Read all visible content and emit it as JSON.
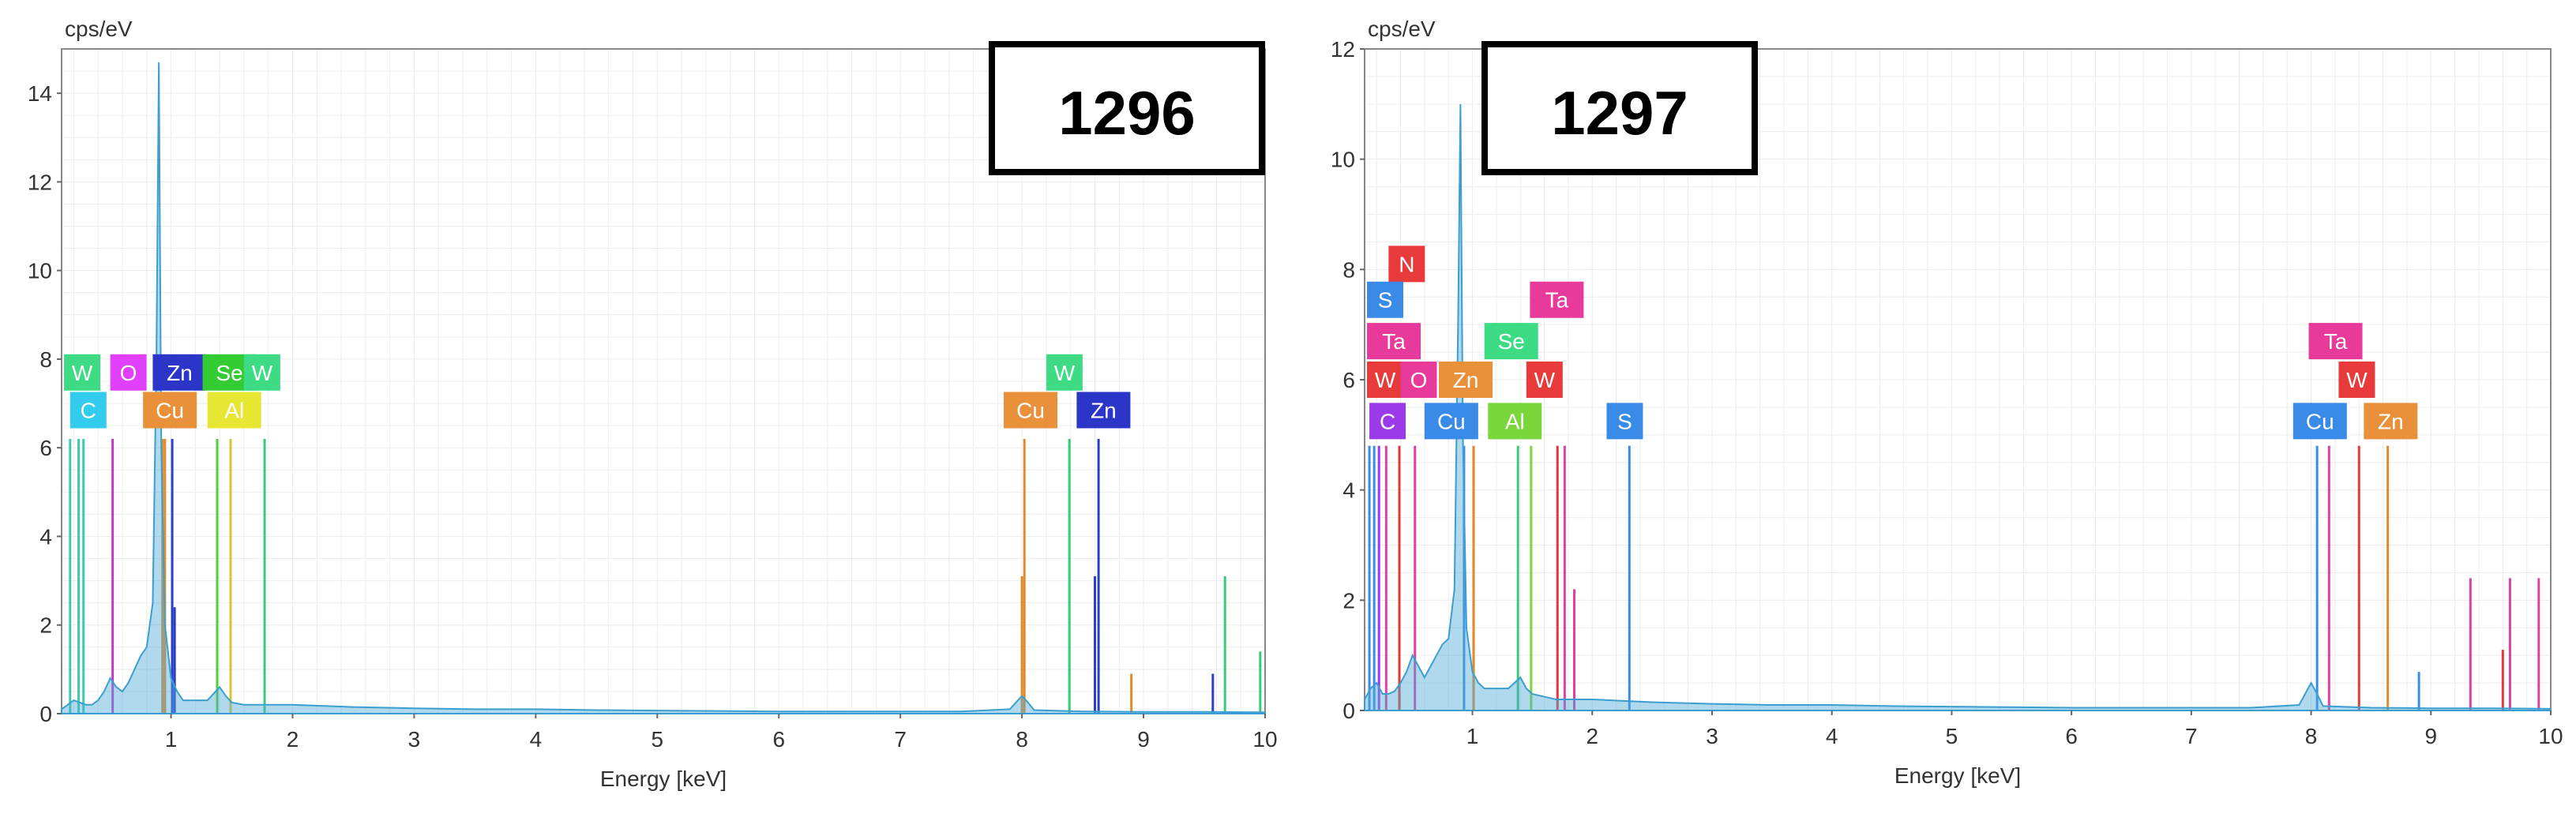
{
  "chart_data": [
    {
      "type": "line",
      "title": "1296",
      "unit_label": "cps/eV",
      "xlabel": "Energy [keV]",
      "xlim": [
        0.1,
        10
      ],
      "ylim": [
        0,
        15
      ],
      "x_ticks": [
        1,
        2,
        3,
        4,
        5,
        6,
        7,
        8,
        9,
        10
      ],
      "y_ticks": [
        0,
        2,
        4,
        6,
        8,
        10,
        12,
        14
      ],
      "grid": true,
      "spectrum": {
        "x": [
          0.1,
          0.15,
          0.2,
          0.25,
          0.3,
          0.35,
          0.4,
          0.45,
          0.5,
          0.55,
          0.6,
          0.65,
          0.7,
          0.75,
          0.8,
          0.85,
          0.88,
          0.9,
          0.92,
          0.95,
          1.0,
          1.05,
          1.1,
          1.2,
          1.3,
          1.4,
          1.45,
          1.5,
          1.6,
          1.7,
          1.8,
          2.0,
          2.5,
          3.0,
          3.5,
          4.0,
          4.5,
          5.0,
          5.5,
          6.0,
          6.5,
          7.0,
          7.5,
          7.9,
          8.0,
          8.05,
          8.1,
          8.5,
          9.0,
          9.5,
          10.0
        ],
        "y": [
          0.1,
          0.2,
          0.3,
          0.25,
          0.2,
          0.2,
          0.3,
          0.5,
          0.8,
          0.6,
          0.5,
          0.7,
          1.0,
          1.3,
          1.5,
          2.5,
          8.0,
          14.7,
          6.0,
          2.0,
          0.8,
          0.5,
          0.3,
          0.3,
          0.3,
          0.6,
          0.4,
          0.25,
          0.2,
          0.2,
          0.2,
          0.2,
          0.15,
          0.12,
          0.1,
          0.1,
          0.08,
          0.07,
          0.06,
          0.05,
          0.05,
          0.05,
          0.05,
          0.1,
          0.4,
          0.25,
          0.08,
          0.05,
          0.04,
          0.04,
          0.03
        ]
      },
      "lines": [
        {
          "x": 0.17,
          "y": 6.2,
          "color": "#3fc9b0"
        },
        {
          "x": 0.24,
          "y": 6.2,
          "color": "#3fc9b0"
        },
        {
          "x": 0.28,
          "y": 6.2,
          "color": "#3fc9b0"
        },
        {
          "x": 0.52,
          "y": 6.2,
          "color": "#c834c8"
        },
        {
          "x": 0.93,
          "y": 6.2,
          "color": "#e08a2a"
        },
        {
          "x": 0.95,
          "y": 6.2,
          "color": "#e08a2a"
        },
        {
          "x": 1.01,
          "y": 6.2,
          "color": "#2a3fc8"
        },
        {
          "x": 1.03,
          "y": 2.4,
          "color": "#2a3fc8"
        },
        {
          "x": 1.38,
          "y": 6.2,
          "color": "#4ecf3a"
        },
        {
          "x": 1.49,
          "y": 6.2,
          "color": "#d6c43a"
        },
        {
          "x": 1.77,
          "y": 6.2,
          "color": "#3ac97a"
        },
        {
          "x": 8.02,
          "y": 6.2,
          "color": "#e08a2a"
        },
        {
          "x": 8.0,
          "y": 3.1,
          "color": "#e08a2a"
        },
        {
          "x": 8.39,
          "y": 6.2,
          "color": "#3ac97a"
        },
        {
          "x": 8.63,
          "y": 6.2,
          "color": "#2a3fc8"
        },
        {
          "x": 8.6,
          "y": 3.1,
          "color": "#2a3fc8"
        },
        {
          "x": 8.9,
          "y": 0.9,
          "color": "#e08a2a"
        },
        {
          "x": 9.57,
          "y": 0.9,
          "color": "#2a3fc8"
        },
        {
          "x": 9.67,
          "y": 3.1,
          "color": "#3ac97a"
        },
        {
          "x": 9.96,
          "y": 1.4,
          "color": "#3ac97a"
        }
      ],
      "labels": [
        {
          "text": "W",
          "x": 0.12,
          "y": 7.7,
          "color": "#3ddc84"
        },
        {
          "text": "O",
          "x": 0.5,
          "y": 7.7,
          "color": "#e040fb"
        },
        {
          "text": "Zn",
          "x": 0.85,
          "y": 7.7,
          "color": "#2b35c8"
        },
        {
          "text": "Se",
          "x": 1.26,
          "y": 7.7,
          "color": "#33cc33"
        },
        {
          "text": "W",
          "x": 1.6,
          "y": 7.7,
          "color": "#3ddc84"
        },
        {
          "text": "C",
          "x": 0.17,
          "y": 6.85,
          "color": "#33ccee"
        },
        {
          "text": "Cu",
          "x": 0.77,
          "y": 6.85,
          "color": "#e8903a"
        },
        {
          "text": "Al",
          "x": 1.3,
          "y": 6.85,
          "color": "#e6e633"
        },
        {
          "text": "W",
          "x": 8.2,
          "y": 7.7,
          "color": "#3ddc84"
        },
        {
          "text": "Cu",
          "x": 7.85,
          "y": 6.85,
          "color": "#e8903a"
        },
        {
          "text": "Zn",
          "x": 8.45,
          "y": 6.85,
          "color": "#2b35c8"
        }
      ]
    },
    {
      "type": "line",
      "title": "1297",
      "unit_label": "cps/eV",
      "xlabel": "Energy [keV]",
      "xlim": [
        0.1,
        10
      ],
      "ylim": [
        0,
        12
      ],
      "x_ticks": [
        1,
        2,
        3,
        4,
        5,
        6,
        7,
        8,
        9,
        10
      ],
      "y_ticks": [
        0,
        2,
        4,
        6,
        8,
        10,
        12
      ],
      "grid": true,
      "spectrum": {
        "x": [
          0.1,
          0.15,
          0.2,
          0.25,
          0.3,
          0.35,
          0.4,
          0.45,
          0.5,
          0.55,
          0.6,
          0.65,
          0.7,
          0.75,
          0.8,
          0.85,
          0.88,
          0.9,
          0.92,
          0.95,
          1.0,
          1.05,
          1.1,
          1.2,
          1.3,
          1.4,
          1.45,
          1.5,
          1.6,
          1.7,
          1.8,
          2.0,
          2.5,
          3.0,
          3.5,
          4.0,
          4.5,
          5.0,
          5.5,
          6.0,
          6.5,
          7.0,
          7.5,
          7.9,
          8.0,
          8.05,
          8.1,
          8.5,
          9.0,
          9.5,
          10.0
        ],
        "y": [
          0.2,
          0.4,
          0.5,
          0.3,
          0.3,
          0.35,
          0.5,
          0.7,
          1.0,
          0.8,
          0.6,
          0.8,
          1.0,
          1.2,
          1.3,
          2.2,
          7.0,
          11.0,
          5.0,
          1.5,
          0.7,
          0.5,
          0.4,
          0.4,
          0.4,
          0.6,
          0.4,
          0.3,
          0.25,
          0.2,
          0.2,
          0.2,
          0.15,
          0.12,
          0.1,
          0.1,
          0.08,
          0.07,
          0.06,
          0.05,
          0.05,
          0.05,
          0.05,
          0.1,
          0.5,
          0.3,
          0.08,
          0.05,
          0.04,
          0.04,
          0.03
        ]
      },
      "lines": [
        {
          "x": 0.14,
          "y": 4.8,
          "color": "#3a8be8"
        },
        {
          "x": 0.18,
          "y": 4.8,
          "color": "#3a8be8"
        },
        {
          "x": 0.22,
          "y": 4.8,
          "color": "#9b3ae8"
        },
        {
          "x": 0.28,
          "y": 4.8,
          "color": "#e040a0"
        },
        {
          "x": 0.39,
          "y": 4.8,
          "color": "#e03a3a"
        },
        {
          "x": 0.52,
          "y": 4.8,
          "color": "#e040a0"
        },
        {
          "x": 0.93,
          "y": 4.8,
          "color": "#3a8be8"
        },
        {
          "x": 1.01,
          "y": 4.8,
          "color": "#e08a2a"
        },
        {
          "x": 1.38,
          "y": 4.8,
          "color": "#3ac97a"
        },
        {
          "x": 1.49,
          "y": 4.8,
          "color": "#7ad63a"
        },
        {
          "x": 1.71,
          "y": 4.8,
          "color": "#e03a3a"
        },
        {
          "x": 1.77,
          "y": 4.8,
          "color": "#e040a0"
        },
        {
          "x": 1.85,
          "y": 2.2,
          "color": "#e040a0"
        },
        {
          "x": 2.31,
          "y": 4.8,
          "color": "#3a8be8"
        },
        {
          "x": 8.05,
          "y": 4.8,
          "color": "#3a8be8"
        },
        {
          "x": 8.15,
          "y": 4.8,
          "color": "#e040a0"
        },
        {
          "x": 8.4,
          "y": 4.8,
          "color": "#e03a3a"
        },
        {
          "x": 8.64,
          "y": 4.8,
          "color": "#e08a2a"
        },
        {
          "x": 9.33,
          "y": 2.4,
          "color": "#e040a0"
        },
        {
          "x": 9.66,
          "y": 2.4,
          "color": "#e040a0"
        },
        {
          "x": 9.9,
          "y": 2.4,
          "color": "#e040a0"
        },
        {
          "x": 8.9,
          "y": 0.7,
          "color": "#3a8be8"
        },
        {
          "x": 9.6,
          "y": 1.1,
          "color": "#e03a3a"
        }
      ],
      "labels": [
        {
          "text": "N",
          "x": 0.3,
          "y": 8.1,
          "color": "#e83a3a"
        },
        {
          "text": "S",
          "x": 0.12,
          "y": 7.45,
          "color": "#3a8be8"
        },
        {
          "text": "Ta",
          "x": 1.48,
          "y": 7.45,
          "color": "#e83a9b"
        },
        {
          "text": "Ta",
          "x": 0.12,
          "y": 6.7,
          "color": "#e83a9b"
        },
        {
          "text": "Se",
          "x": 1.1,
          "y": 6.7,
          "color": "#3ddc84"
        },
        {
          "text": "W",
          "x": 0.12,
          "y": 6.0,
          "color": "#e83a3a"
        },
        {
          "text": "O",
          "x": 0.4,
          "y": 6.0,
          "color": "#e83a9b"
        },
        {
          "text": "Zn",
          "x": 0.72,
          "y": 6.0,
          "color": "#e8903a"
        },
        {
          "text": "W",
          "x": 1.45,
          "y": 6.0,
          "color": "#e83a3a"
        },
        {
          "text": "C",
          "x": 0.14,
          "y": 5.25,
          "color": "#9b3ae8"
        },
        {
          "text": "Cu",
          "x": 0.6,
          "y": 5.25,
          "color": "#3a8be8"
        },
        {
          "text": "Al",
          "x": 1.13,
          "y": 5.25,
          "color": "#7ad63a"
        },
        {
          "text": "S",
          "x": 2.12,
          "y": 5.25,
          "color": "#3a8be8"
        },
        {
          "text": "Ta",
          "x": 7.98,
          "y": 6.7,
          "color": "#e83a9b"
        },
        {
          "text": "W",
          "x": 8.23,
          "y": 6.0,
          "color": "#e83a3a"
        },
        {
          "text": "Cu",
          "x": 7.85,
          "y": 5.25,
          "color": "#3a8be8"
        },
        {
          "text": "Zn",
          "x": 8.44,
          "y": 5.25,
          "color": "#e8903a"
        }
      ]
    }
  ]
}
